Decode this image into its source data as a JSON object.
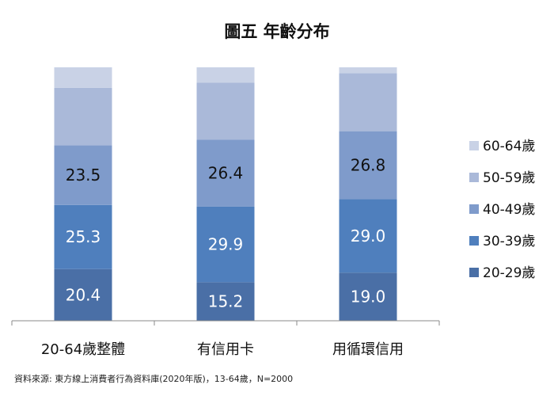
{
  "chart_data": {
    "type": "bar",
    "stacked": true,
    "percent_stacked": true,
    "title": "圖五 年齡分布",
    "categories": [
      "20-64歲整體",
      "有信用卡",
      "用循環信用"
    ],
    "series": [
      {
        "name": "20-29歲",
        "color": "#4a6fa6",
        "values": [
          20.4,
          15.2,
          19.0
        ],
        "labels_shown": true
      },
      {
        "name": "30-39歲",
        "color": "#4f7fbd",
        "values": [
          25.3,
          29.9,
          29.0
        ],
        "labels_shown": true
      },
      {
        "name": "40-49歲",
        "color": "#7f9bcb",
        "values": [
          23.5,
          26.4,
          26.8
        ],
        "labels_shown": true
      },
      {
        "name": "50-59歲",
        "color": "#aab9d9",
        "values": [
          22.7,
          22.5,
          22.9
        ],
        "labels_shown": false
      },
      {
        "name": "60-64歲",
        "color": "#c9d2e6",
        "values": [
          8.1,
          6.0,
          2.3
        ],
        "labels_shown": false
      }
    ],
    "ylim": [
      0,
      100
    ],
    "legend_position": "right",
    "grid": false
  },
  "source": "資料來源: 東方線上消費者行為資料庫(2020年版)，13-64歲，N=2000"
}
